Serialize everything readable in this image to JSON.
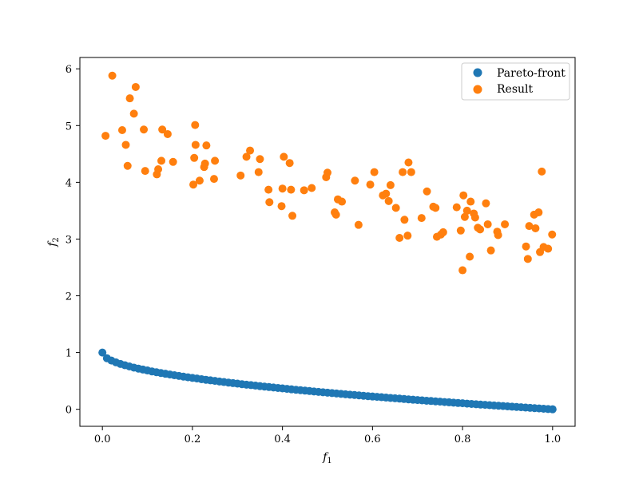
{
  "chart_data": {
    "type": "scatter",
    "xlabel": {
      "base": "f",
      "sub": "1"
    },
    "ylabel": {
      "base": "f",
      "sub": "2"
    },
    "xlim": [
      -0.05,
      1.05
    ],
    "ylim": [
      -0.3,
      6.2
    ],
    "xticks": [
      0.0,
      0.2,
      0.4,
      0.6,
      0.8,
      1.0
    ],
    "xtick_labels": [
      "0.0",
      "0.2",
      "0.4",
      "0.6",
      "0.8",
      "1.0"
    ],
    "yticks": [
      0,
      1,
      2,
      3,
      4,
      5,
      6
    ],
    "ytick_labels": [
      "0",
      "1",
      "2",
      "3",
      "4",
      "5",
      "6"
    ],
    "grid": false,
    "legend": {
      "position": "top-right",
      "entries": [
        "Pareto-front",
        "Result"
      ]
    },
    "series": [
      {
        "name": "Pareto-front",
        "color": "#1f77b4",
        "curve": "f2 = 1 - sqrt(f1)",
        "points": [
          [
            0.0,
            1.0
          ],
          [
            0.01,
            0.9
          ],
          [
            0.02,
            0.859
          ],
          [
            0.03,
            0.827
          ],
          [
            0.04,
            0.8
          ],
          [
            0.05,
            0.776
          ],
          [
            0.06,
            0.755
          ],
          [
            0.07,
            0.735
          ],
          [
            0.08,
            0.717
          ],
          [
            0.09,
            0.7
          ],
          [
            0.1,
            0.684
          ],
          [
            0.11,
            0.668
          ],
          [
            0.12,
            0.654
          ],
          [
            0.13,
            0.639
          ],
          [
            0.14,
            0.626
          ],
          [
            0.15,
            0.613
          ],
          [
            0.16,
            0.6
          ],
          [
            0.17,
            0.588
          ],
          [
            0.18,
            0.576
          ],
          [
            0.19,
            0.564
          ],
          [
            0.2,
            0.553
          ],
          [
            0.21,
            0.542
          ],
          [
            0.22,
            0.531
          ],
          [
            0.23,
            0.52
          ],
          [
            0.24,
            0.51
          ],
          [
            0.25,
            0.5
          ],
          [
            0.26,
            0.49
          ],
          [
            0.27,
            0.48
          ],
          [
            0.28,
            0.471
          ],
          [
            0.29,
            0.461
          ],
          [
            0.3,
            0.452
          ],
          [
            0.31,
            0.443
          ],
          [
            0.32,
            0.434
          ],
          [
            0.33,
            0.426
          ],
          [
            0.34,
            0.417
          ],
          [
            0.35,
            0.408
          ],
          [
            0.36,
            0.4
          ],
          [
            0.37,
            0.392
          ],
          [
            0.38,
            0.384
          ],
          [
            0.39,
            0.376
          ],
          [
            0.4,
            0.368
          ],
          [
            0.41,
            0.36
          ],
          [
            0.42,
            0.352
          ],
          [
            0.43,
            0.344
          ],
          [
            0.44,
            0.337
          ],
          [
            0.45,
            0.329
          ],
          [
            0.46,
            0.322
          ],
          [
            0.47,
            0.314
          ],
          [
            0.48,
            0.307
          ],
          [
            0.49,
            0.3
          ],
          [
            0.5,
            0.293
          ],
          [
            0.51,
            0.286
          ],
          [
            0.52,
            0.279
          ],
          [
            0.53,
            0.272
          ],
          [
            0.54,
            0.265
          ],
          [
            0.55,
            0.258
          ],
          [
            0.56,
            0.252
          ],
          [
            0.57,
            0.245
          ],
          [
            0.58,
            0.238
          ],
          [
            0.59,
            0.232
          ],
          [
            0.6,
            0.225
          ],
          [
            0.61,
            0.219
          ],
          [
            0.62,
            0.213
          ],
          [
            0.63,
            0.206
          ],
          [
            0.64,
            0.2
          ],
          [
            0.65,
            0.194
          ],
          [
            0.66,
            0.188
          ],
          [
            0.67,
            0.181
          ],
          [
            0.68,
            0.175
          ],
          [
            0.69,
            0.169
          ],
          [
            0.7,
            0.163
          ],
          [
            0.71,
            0.157
          ],
          [
            0.72,
            0.151
          ],
          [
            0.73,
            0.146
          ],
          [
            0.74,
            0.14
          ],
          [
            0.75,
            0.134
          ],
          [
            0.76,
            0.128
          ],
          [
            0.77,
            0.123
          ],
          [
            0.78,
            0.117
          ],
          [
            0.79,
            0.111
          ],
          [
            0.8,
            0.106
          ],
          [
            0.81,
            0.1
          ],
          [
            0.82,
            0.094
          ],
          [
            0.83,
            0.089
          ],
          [
            0.84,
            0.083
          ],
          [
            0.85,
            0.078
          ],
          [
            0.86,
            0.073
          ],
          [
            0.87,
            0.067
          ],
          [
            0.88,
            0.062
          ],
          [
            0.89,
            0.057
          ],
          [
            0.9,
            0.051
          ],
          [
            0.91,
            0.046
          ],
          [
            0.92,
            0.041
          ],
          [
            0.93,
            0.036
          ],
          [
            0.94,
            0.03
          ],
          [
            0.95,
            0.025
          ],
          [
            0.96,
            0.02
          ],
          [
            0.97,
            0.015
          ],
          [
            0.98,
            0.01
          ],
          [
            0.99,
            0.005
          ],
          [
            1.0,
            0.0
          ]
        ]
      },
      {
        "name": "Result",
        "color": "#ff7f0e",
        "points": [
          [
            0.007,
            4.82
          ],
          [
            0.022,
            5.88
          ],
          [
            0.044,
            4.92
          ],
          [
            0.052,
            4.66
          ],
          [
            0.056,
            4.29
          ],
          [
            0.061,
            5.48
          ],
          [
            0.07,
            5.21
          ],
          [
            0.074,
            5.68
          ],
          [
            0.092,
            4.93
          ],
          [
            0.095,
            4.2
          ],
          [
            0.121,
            4.14
          ],
          [
            0.124,
            4.23
          ],
          [
            0.131,
            4.38
          ],
          [
            0.133,
            4.93
          ],
          [
            0.145,
            4.85
          ],
          [
            0.157,
            4.36
          ],
          [
            0.202,
            3.96
          ],
          [
            0.204,
            4.43
          ],
          [
            0.206,
            5.01
          ],
          [
            0.207,
            4.66
          ],
          [
            0.216,
            4.03
          ],
          [
            0.226,
            4.27
          ],
          [
            0.228,
            4.33
          ],
          [
            0.231,
            4.65
          ],
          [
            0.248,
            4.06
          ],
          [
            0.25,
            4.38
          ],
          [
            0.307,
            4.12
          ],
          [
            0.32,
            4.45
          ],
          [
            0.328,
            4.56
          ],
          [
            0.347,
            4.18
          ],
          [
            0.35,
            4.41
          ],
          [
            0.369,
            3.87
          ],
          [
            0.371,
            3.65
          ],
          [
            0.398,
            3.58
          ],
          [
            0.4,
            3.89
          ],
          [
            0.403,
            4.45
          ],
          [
            0.416,
            4.34
          ],
          [
            0.419,
            3.87
          ],
          [
            0.422,
            3.41
          ],
          [
            0.448,
            3.86
          ],
          [
            0.465,
            3.9
          ],
          [
            0.497,
            4.09
          ],
          [
            0.5,
            4.17
          ],
          [
            0.516,
            3.47
          ],
          [
            0.519,
            3.43
          ],
          [
            0.523,
            3.7
          ],
          [
            0.532,
            3.66
          ],
          [
            0.561,
            4.03
          ],
          [
            0.569,
            3.25
          ],
          [
            0.595,
            3.96
          ],
          [
            0.604,
            4.18
          ],
          [
            0.623,
            3.77
          ],
          [
            0.63,
            3.8
          ],
          [
            0.636,
            3.67
          ],
          [
            0.64,
            3.95
          ],
          [
            0.652,
            3.55
          ],
          [
            0.66,
            3.02
          ],
          [
            0.667,
            4.18
          ],
          [
            0.671,
            3.34
          ],
          [
            0.678,
            3.06
          ],
          [
            0.68,
            4.35
          ],
          [
            0.686,
            4.18
          ],
          [
            0.709,
            3.37
          ],
          [
            0.721,
            3.84
          ],
          [
            0.735,
            3.57
          ],
          [
            0.74,
            3.55
          ],
          [
            0.743,
            3.04
          ],
          [
            0.752,
            3.08
          ],
          [
            0.757,
            3.12
          ],
          [
            0.787,
            3.56
          ],
          [
            0.796,
            3.15
          ],
          [
            0.8,
            2.45
          ],
          [
            0.802,
            3.77
          ],
          [
            0.805,
            3.39
          ],
          [
            0.81,
            3.5
          ],
          [
            0.816,
            2.69
          ],
          [
            0.818,
            3.66
          ],
          [
            0.825,
            3.45
          ],
          [
            0.828,
            3.38
          ],
          [
            0.834,
            3.2
          ],
          [
            0.839,
            3.17
          ],
          [
            0.852,
            3.63
          ],
          [
            0.856,
            3.26
          ],
          [
            0.863,
            2.8
          ],
          [
            0.877,
            3.13
          ],
          [
            0.879,
            3.07
          ],
          [
            0.894,
            3.26
          ],
          [
            0.941,
            2.87
          ],
          [
            0.945,
            2.65
          ],
          [
            0.948,
            3.23
          ],
          [
            0.959,
            3.43
          ],
          [
            0.962,
            3.19
          ],
          [
            0.969,
            3.47
          ],
          [
            0.972,
            2.77
          ],
          [
            0.976,
            4.19
          ],
          [
            0.98,
            2.86
          ],
          [
            0.99,
            2.83
          ],
          [
            0.999,
            3.08
          ]
        ]
      }
    ]
  }
}
